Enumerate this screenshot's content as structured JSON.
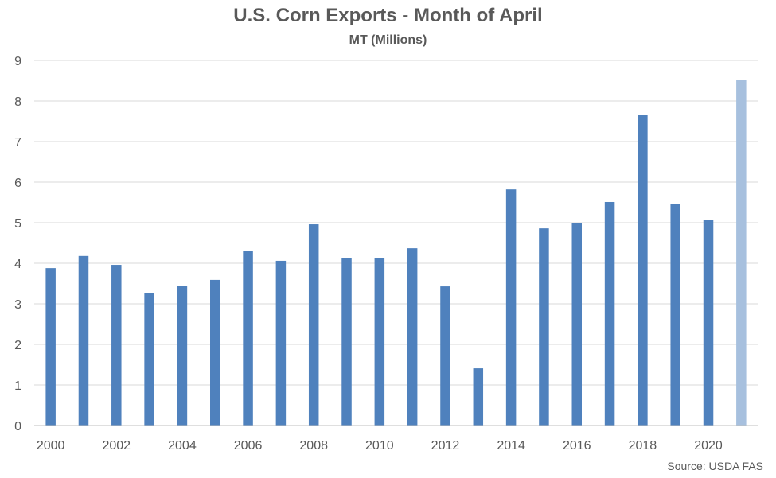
{
  "chart_data": {
    "type": "bar",
    "title": "U.S. Corn Exports - Month of April",
    "subtitle": "MT (Millions)",
    "xlabel": "",
    "ylabel": "",
    "categories": [
      "2000",
      "2001",
      "2002",
      "2003",
      "2004",
      "2005",
      "2006",
      "2007",
      "2008",
      "2009",
      "2010",
      "2011",
      "2012",
      "2013",
      "2014",
      "2015",
      "2016",
      "2017",
      "2018",
      "2019",
      "2020",
      "2021"
    ],
    "x_tick_labels": [
      "2000",
      "2002",
      "2004",
      "2006",
      "2008",
      "2010",
      "2012",
      "2014",
      "2016",
      "2018",
      "2020"
    ],
    "values": [
      3.88,
      4.18,
      3.96,
      3.27,
      3.45,
      3.59,
      4.31,
      4.06,
      4.96,
      4.12,
      4.13,
      4.37,
      3.43,
      1.41,
      5.82,
      4.86,
      5.0,
      5.51,
      7.65,
      5.47,
      5.06,
      8.51
    ],
    "ylim": [
      0,
      9
    ],
    "yticks": [
      0,
      1,
      2,
      3,
      4,
      5,
      6,
      7,
      8,
      9
    ],
    "grid": true,
    "legend": "none",
    "colors": {
      "bar": "#4f81bd",
      "highlight_bar": "#a7c0de",
      "grid": "#d9d9d9",
      "text": "#595959"
    },
    "highlighted_categories": [
      "2021"
    ],
    "source": "Source: USDA FAS"
  }
}
